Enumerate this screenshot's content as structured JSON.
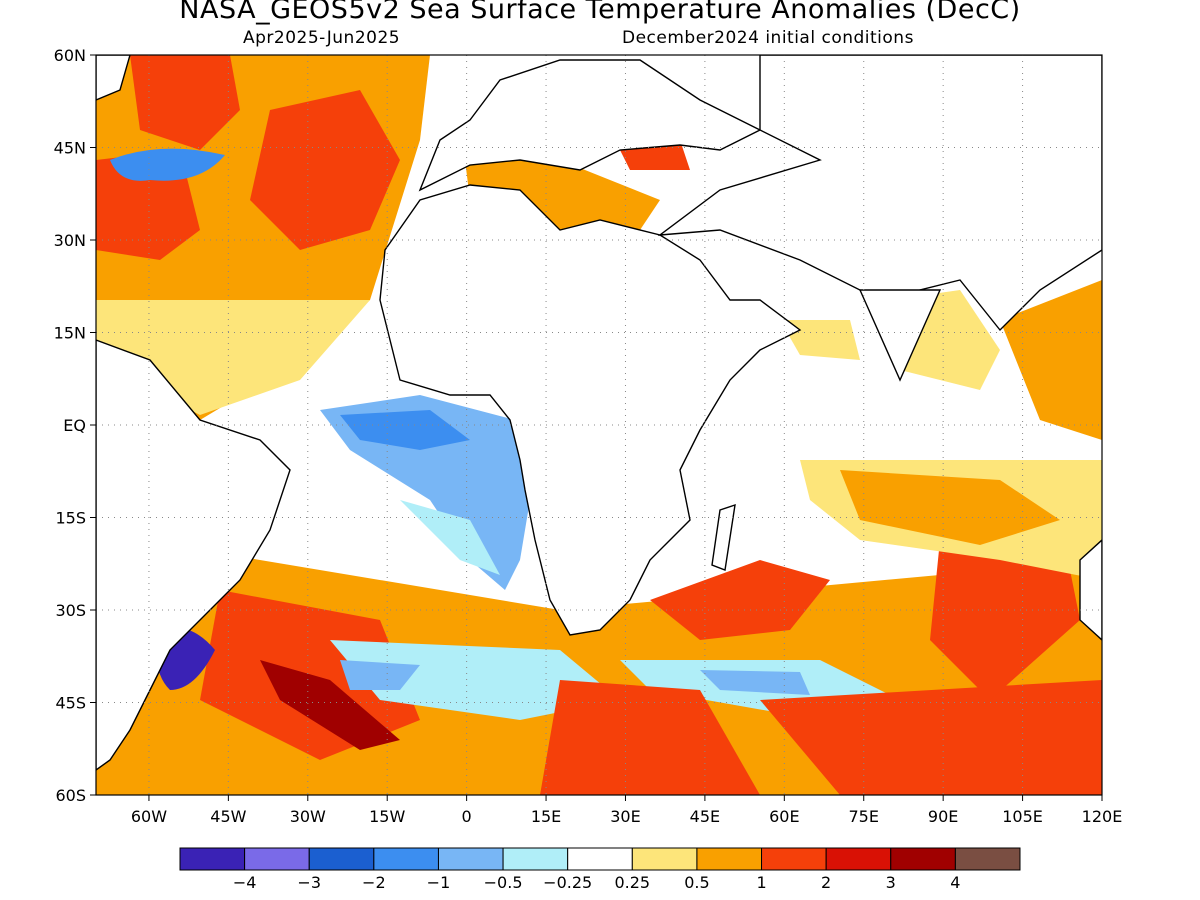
{
  "title": "NASA_GEOS5v2 Sea Surface Temperature Anomalies (DecC)",
  "subtitle_left": "Apr2025-Jun2025",
  "subtitle_right": "December2024 initial conditions",
  "map": {
    "lat_ticks": [
      "60N",
      "45N",
      "30N",
      "15N",
      "EQ",
      "15S",
      "30S",
      "45S",
      "60S"
    ],
    "lon_ticks": [
      "60W",
      "45W",
      "30W",
      "15W",
      "0",
      "15E",
      "30E",
      "45E",
      "60E",
      "75E",
      "90E",
      "105E",
      "120E"
    ],
    "lon_range": [
      -70,
      120
    ],
    "lat_range": [
      -60,
      60
    ],
    "grid": "dotted"
  },
  "colorbar": {
    "colors": [
      "#3a22b5",
      "#7a6ae8",
      "#1b5fd0",
      "#3c8ef0",
      "#78b6f5",
      "#b0eef8",
      "#ffffff",
      "#fde57a",
      "#f9a000",
      "#f5400a",
      "#d91105",
      "#a00000",
      "#7a4e42"
    ],
    "labels": [
      "−4",
      "−3",
      "−2",
      "−1",
      "−0.5",
      "−0.25",
      "0.25",
      "0.5",
      "1",
      "2",
      "3",
      "4"
    ]
  }
}
